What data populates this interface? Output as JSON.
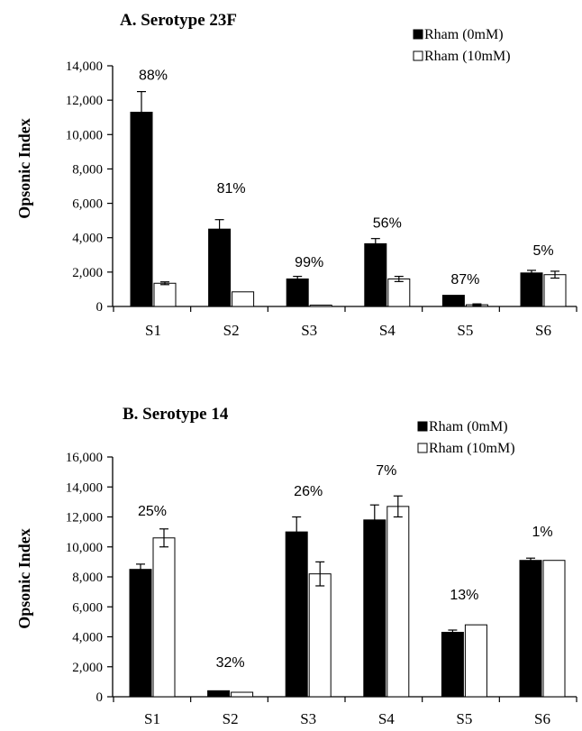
{
  "chart_data": [
    {
      "type": "bar",
      "title": "A. Serotype 23F",
      "xlabel": "",
      "ylabel": "Opsonic Index",
      "ylim": [
        0,
        14000
      ],
      "yticks": [
        "0",
        "2,000",
        "4,000",
        "6,000",
        "8,000",
        "10,000",
        "12,000",
        "14,000"
      ],
      "ytick_values": [
        0,
        2000,
        4000,
        6000,
        8000,
        10000,
        12000,
        14000
      ],
      "categories": [
        "S1",
        "S2",
        "S3",
        "S4",
        "S5",
        "S6"
      ],
      "series": [
        {
          "name": "Rham (0mM)",
          "color": "#000000",
          "values": [
            11300,
            4500,
            1600,
            3650,
            650,
            1950
          ],
          "errors": [
            1200,
            550,
            150,
            300,
            0,
            150
          ]
        },
        {
          "name": "Rham (10mM)",
          "color": "#ffffff",
          "values": [
            1350,
            850,
            50,
            1600,
            100,
            1850
          ],
          "errors": [
            80,
            0,
            0,
            150,
            50,
            200
          ]
        }
      ],
      "annotations": [
        "88%",
        "81%",
        "99%",
        "56%",
        "87%",
        "5%"
      ],
      "annotation_values": [
        13200,
        6600,
        2300,
        4600,
        1300,
        3000
      ],
      "grid": false,
      "legend": "top-right"
    },
    {
      "type": "bar",
      "title": "B. Serotype 14",
      "xlabel": "",
      "ylabel": "Opsonic Index",
      "ylim": [
        0,
        16000
      ],
      "yticks": [
        "0",
        "2,000",
        "4,000",
        "6,000",
        "8,000",
        "10,000",
        "12,000",
        "14,000",
        "16,000"
      ],
      "ytick_values": [
        0,
        2000,
        4000,
        6000,
        8000,
        10000,
        12000,
        14000,
        16000
      ],
      "categories": [
        "S1",
        "S2",
        "S3",
        "S4",
        "S5",
        "S6"
      ],
      "series": [
        {
          "name": "Rham (0mM)",
          "color": "#000000",
          "values": [
            8500,
            400,
            11000,
            11800,
            4300,
            9100
          ],
          "errors": [
            350,
            0,
            1000,
            1000,
            150,
            150
          ]
        },
        {
          "name": "Rham (10mM)",
          "color": "#ffffff",
          "values": [
            10600,
            300,
            8200,
            12700,
            4800,
            9100
          ],
          "errors": [
            600,
            0,
            800,
            700,
            0,
            0
          ]
        }
      ],
      "annotations": [
        "25%",
        "32%",
        "26%",
        "7%",
        "13%",
        "1%"
      ],
      "annotation_values": [
        12100,
        2000,
        13400,
        14800,
        6500,
        10700
      ],
      "grid": false,
      "legend": "top-right"
    }
  ]
}
